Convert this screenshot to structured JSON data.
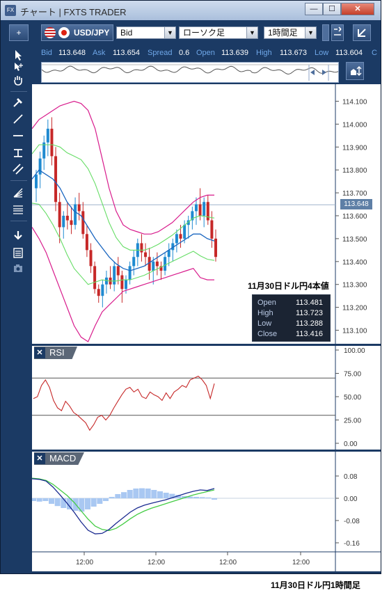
{
  "window": {
    "icon": "FX",
    "title": "チャート | FXTS TRADER",
    "min": "—",
    "max": "☐",
    "close": "✕"
  },
  "toolbar": {
    "add": "+",
    "pair": "USD/JPY",
    "price_type": "Bid",
    "chart_type": "ローソク足",
    "timeframe": "1時間足",
    "chevron": "▼",
    "expand_icon": "expand-icon",
    "detach_icon": "detach-icon"
  },
  "quote": {
    "bid_label": "Bid",
    "bid": "113.648",
    "ask_label": "Ask",
    "ask": "113.654",
    "spread_label": "Spread",
    "spread": "0.6",
    "open_label": "Open",
    "open": "113.639",
    "high_label": "High",
    "high": "113.673",
    "low_label": "Low",
    "low": "113.604",
    "close_label": "C"
  },
  "tools": [
    "cursor-icon",
    "crosshair-icon",
    "hand-icon",
    "hammer-icon",
    "trendline-icon",
    "horizontal-line-icon",
    "vertical-line-icon",
    "channel-icon",
    "fan-icon",
    "fibonacci-icon",
    "download-icon",
    "list-icon",
    "camera-icon"
  ],
  "panels": {
    "rsi_label": "RSI",
    "macd_label": "MACD",
    "close_x": "✕"
  },
  "info": {
    "title": "11月30日ドル円4本値",
    "rows": [
      {
        "k": "Open",
        "v": "113.481"
      },
      {
        "k": "High",
        "v": "113.723"
      },
      {
        "k": "Low",
        "v": "113.288"
      },
      {
        "k": "Close",
        "v": "113.416"
      }
    ]
  },
  "current_price": "113.648",
  "caption": "11月30日ドル円1時間足",
  "colors": {
    "frame": "#1b3a64",
    "up_candle": "#1f8ad0",
    "down_candle": "#c62828",
    "bollinger_2sigma": "#d81b8c",
    "bollinger_1sigma": "#66dd66",
    "moving_average": "#1a66c0",
    "rsi_line": "#c62828",
    "macd_line": "#1a2a90",
    "signal_line": "#44cc44",
    "histogram": "#a9c8f2"
  },
  "chart_data": [
    {
      "type": "candlestick",
      "title": "USD/JPY",
      "yaxis_ticks": [
        "114.100",
        "114.000",
        "113.900",
        "113.800",
        "113.700",
        "113.600",
        "113.500",
        "113.400",
        "113.300",
        "113.200",
        "113.100"
      ],
      "ylim": [
        113.05,
        114.15
      ],
      "xaxis_ticks": [
        "12:00",
        "12:00",
        "12:00",
        "12:00"
      ],
      "current_price": 113.648,
      "candles": [
        [
          113.72,
          113.8,
          113.66,
          113.78
        ],
        [
          113.78,
          113.88,
          113.72,
          113.85
        ],
        [
          113.85,
          113.95,
          113.8,
          113.92
        ],
        [
          113.92,
          114.02,
          113.86,
          113.98
        ],
        [
          113.98,
          114.03,
          113.82,
          113.86
        ],
        [
          113.86,
          113.9,
          113.62,
          113.66
        ],
        [
          113.66,
          113.7,
          113.48,
          113.55
        ],
        [
          113.55,
          113.62,
          113.5,
          113.6
        ],
        [
          113.6,
          113.66,
          113.54,
          113.58
        ],
        [
          113.58,
          113.64,
          113.52,
          113.56
        ],
        [
          113.56,
          113.68,
          113.54,
          113.65
        ],
        [
          113.65,
          113.7,
          113.58,
          113.62
        ],
        [
          113.62,
          113.66,
          113.5,
          113.52
        ],
        [
          113.52,
          113.56,
          113.42,
          113.45
        ],
        [
          113.45,
          113.48,
          113.35,
          113.38
        ],
        [
          113.38,
          113.4,
          113.26,
          113.28
        ],
        [
          113.28,
          113.3,
          113.22,
          113.25
        ],
        [
          113.25,
          113.32,
          113.2,
          113.3
        ],
        [
          113.3,
          113.36,
          113.26,
          113.33
        ],
        [
          113.33,
          113.38,
          113.28,
          113.3
        ],
        [
          113.3,
          113.4,
          113.27,
          113.38
        ],
        [
          113.38,
          113.42,
          113.3,
          113.34
        ],
        [
          113.34,
          113.36,
          113.22,
          113.28
        ],
        [
          113.28,
          113.34,
          113.26,
          113.32
        ],
        [
          113.32,
          113.4,
          113.3,
          113.38
        ],
        [
          113.38,
          113.45,
          113.34,
          113.42
        ],
        [
          113.42,
          113.5,
          113.38,
          113.48
        ],
        [
          113.48,
          113.52,
          113.4,
          113.44
        ],
        [
          113.44,
          113.48,
          113.38,
          113.42
        ],
        [
          113.42,
          113.46,
          113.32,
          113.36
        ],
        [
          113.36,
          113.42,
          113.3,
          113.4
        ],
        [
          113.4,
          113.44,
          113.34,
          113.38
        ],
        [
          113.38,
          113.4,
          113.32,
          113.36
        ],
        [
          113.36,
          113.44,
          113.34,
          113.42
        ],
        [
          113.42,
          113.48,
          113.38,
          113.45
        ],
        [
          113.45,
          113.5,
          113.4,
          113.48
        ],
        [
          113.48,
          113.54,
          113.44,
          113.52
        ],
        [
          113.52,
          113.56,
          113.46,
          113.5
        ],
        [
          113.5,
          113.58,
          113.48,
          113.56
        ],
        [
          113.56,
          113.6,
          113.5,
          113.58
        ],
        [
          113.58,
          113.64,
          113.54,
          113.62
        ],
        [
          113.62,
          113.68,
          113.56,
          113.65
        ],
        [
          113.65,
          113.72,
          113.58,
          113.6
        ],
        [
          113.6,
          113.68,
          113.55,
          113.66
        ],
        [
          113.66,
          113.69,
          113.56,
          113.58
        ],
        [
          113.58,
          113.62,
          113.46,
          113.5
        ],
        [
          113.5,
          113.54,
          113.4,
          113.42
        ]
      ],
      "bollinger_upper": [
        113.98,
        114.02,
        114.04,
        114.06,
        114.08,
        114.09,
        114.1,
        114.09,
        114.06,
        113.98,
        113.85,
        113.72,
        113.62,
        113.56,
        113.54,
        113.53,
        113.52,
        113.52,
        113.53,
        113.55,
        113.57,
        113.6,
        113.63,
        113.66,
        113.68,
        113.69,
        113.69
      ],
      "bollinger_lower": [
        113.55,
        113.5,
        113.44,
        113.36,
        113.28,
        113.2,
        113.12,
        113.07,
        113.05,
        113.12,
        113.18,
        113.21,
        113.24,
        113.27,
        113.28,
        113.29,
        113.3,
        113.31,
        113.32,
        113.33,
        113.34,
        113.35,
        113.36,
        113.37,
        113.33,
        113.32,
        113.32
      ],
      "moving_average": [
        113.76,
        113.8,
        113.78,
        113.76,
        113.72,
        113.66,
        113.62,
        113.6,
        113.55,
        113.5,
        113.46,
        113.42,
        113.39,
        113.37,
        113.36,
        113.37,
        113.38,
        113.4,
        113.42,
        113.44,
        113.46,
        113.48,
        113.5,
        113.52,
        113.52,
        113.5,
        113.49
      ]
    },
    {
      "type": "line",
      "title": "RSI",
      "yaxis_ticks": [
        "100.00",
        "75.00",
        "50.00",
        "25.00",
        "0.00"
      ],
      "ylim": [
        0,
        100
      ],
      "levels": [
        70,
        30
      ],
      "values": [
        48,
        50,
        62,
        68,
        60,
        46,
        38,
        35,
        45,
        40,
        33,
        30,
        26,
        22,
        14,
        20,
        28,
        30,
        25,
        30,
        38,
        45,
        52,
        58,
        60,
        55,
        58,
        50,
        48,
        55,
        52,
        50,
        46,
        54,
        48,
        55,
        58,
        62,
        60,
        68,
        70,
        72,
        68,
        62,
        48,
        64
      ]
    },
    {
      "type": "line",
      "title": "MACD",
      "yaxis_ticks": [
        "0.08",
        "0.00",
        "-0.08",
        "-0.16"
      ],
      "ylim": [
        -0.17,
        0.1
      ],
      "macd": [
        0.07,
        0.068,
        0.062,
        0.04,
        0.012,
        -0.018,
        -0.05,
        -0.085,
        -0.115,
        -0.128,
        -0.126,
        -0.112,
        -0.09,
        -0.07,
        -0.05,
        -0.035,
        -0.025,
        -0.018,
        -0.012,
        -0.006,
        0.002,
        0.01,
        0.018,
        0.025,
        0.03,
        0.028,
        0.035
      ],
      "signal": [
        0.072,
        0.07,
        0.064,
        0.05,
        0.03,
        0.01,
        -0.015,
        -0.045,
        -0.075,
        -0.1,
        -0.112,
        -0.116,
        -0.108,
        -0.092,
        -0.074,
        -0.058,
        -0.046,
        -0.036,
        -0.028,
        -0.02,
        -0.012,
        -0.004,
        0.004,
        0.012,
        0.018,
        0.024,
        0.03
      ],
      "histogram": [
        -0.01,
        -0.012,
        -0.01,
        -0.02,
        -0.028,
        -0.035,
        -0.04,
        -0.045,
        -0.048,
        -0.04,
        -0.03,
        -0.02,
        -0.01,
        0.005,
        0.015,
        0.022,
        0.03,
        0.035,
        0.036,
        0.035,
        0.03,
        0.025,
        0.02,
        0.016,
        0.012,
        0.008,
        0.006,
        0.005,
        0.004,
        0.003,
        -0.005
      ]
    }
  ]
}
